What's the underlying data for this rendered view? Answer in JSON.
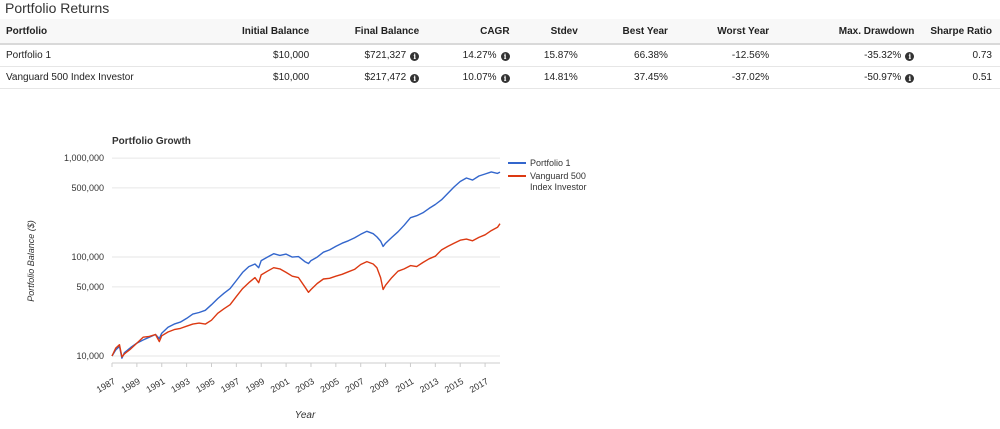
{
  "page_title": "Portfolio Returns",
  "table": {
    "headers": [
      "Portfolio",
      "Initial Balance",
      "Final Balance",
      "CAGR",
      "Stdev",
      "Best Year",
      "Worst Year",
      "Max. Drawdown",
      "Sharpe Ratio"
    ],
    "rows": [
      {
        "portfolio": "Portfolio 1",
        "initial_balance": "$10,000",
        "final_balance": "$721,327",
        "cagr": "14.27%",
        "stdev": "15.87%",
        "best_year": "66.38%",
        "worst_year": "-12.56%",
        "max_drawdown": "-35.32%",
        "sharpe_ratio": "0.73"
      },
      {
        "portfolio": "Vanguard 500 Index Investor",
        "initial_balance": "$10,000",
        "final_balance": "$217,472",
        "cagr": "10.07%",
        "stdev": "14.81%",
        "best_year": "37.45%",
        "worst_year": "-37.02%",
        "max_drawdown": "-50.97%",
        "sharpe_ratio": "0.51"
      }
    ],
    "info_icon": "info-circle-icon"
  },
  "colors": {
    "portfolio_1": "#3366cc",
    "vanguard": "#dc3912"
  },
  "chart_data": {
    "type": "line",
    "title": "Portfolio Growth",
    "xlabel": "Year",
    "ylabel": "Portfolio Balance ($)",
    "y_scale": "log",
    "ylim": [
      8500,
      1100000
    ],
    "xlim": [
      1987,
      2018.2
    ],
    "y_ticks": [
      10000,
      50000,
      100000,
      500000,
      1000000
    ],
    "y_tick_labels": [
      "10,000",
      "50,000",
      "100,000",
      "500,000",
      "1,000,000"
    ],
    "x_ticks": [
      1987,
      1989,
      1991,
      1993,
      1995,
      1997,
      1999,
      2001,
      2003,
      2005,
      2007,
      2009,
      2011,
      2013,
      2015,
      2017
    ],
    "x_tick_labels": [
      "1987",
      "1989",
      "1991",
      "1993",
      "1995",
      "1997",
      "1999",
      "2001",
      "2003",
      "2005",
      "2007",
      "2009",
      "2011",
      "2013",
      "2015",
      "2017"
    ],
    "legend_position": "right",
    "series": [
      {
        "name": "Portfolio 1",
        "color": "#3366cc",
        "points": [
          [
            1987.0,
            10000
          ],
          [
            1987.3,
            11500
          ],
          [
            1987.6,
            12500
          ],
          [
            1987.8,
            9500
          ],
          [
            1988.0,
            10800
          ],
          [
            1988.5,
            12200
          ],
          [
            1989.0,
            13500
          ],
          [
            1989.5,
            14500
          ],
          [
            1990.0,
            15500
          ],
          [
            1990.5,
            16500
          ],
          [
            1990.8,
            15000
          ],
          [
            1991.0,
            17000
          ],
          [
            1991.5,
            19500
          ],
          [
            1992.0,
            21000
          ],
          [
            1992.5,
            22000
          ],
          [
            1993.0,
            24000
          ],
          [
            1993.5,
            26500
          ],
          [
            1994.0,
            27500
          ],
          [
            1994.5,
            29000
          ],
          [
            1995.0,
            33000
          ],
          [
            1995.5,
            38000
          ],
          [
            1996.0,
            43000
          ],
          [
            1996.5,
            48000
          ],
          [
            1997.0,
            58000
          ],
          [
            1997.5,
            70000
          ],
          [
            1998.0,
            80000
          ],
          [
            1998.5,
            85000
          ],
          [
            1998.8,
            78000
          ],
          [
            1999.0,
            92000
          ],
          [
            1999.5,
            100000
          ],
          [
            2000.0,
            108000
          ],
          [
            2000.5,
            104000
          ],
          [
            2001.0,
            107000
          ],
          [
            2001.5,
            100000
          ],
          [
            2002.0,
            101000
          ],
          [
            2002.5,
            90000
          ],
          [
            2002.8,
            86000
          ],
          [
            2003.0,
            92000
          ],
          [
            2003.5,
            100000
          ],
          [
            2004.0,
            112000
          ],
          [
            2004.5,
            118000
          ],
          [
            2005.0,
            128000
          ],
          [
            2005.5,
            138000
          ],
          [
            2006.0,
            146000
          ],
          [
            2006.5,
            156000
          ],
          [
            2007.0,
            170000
          ],
          [
            2007.5,
            182000
          ],
          [
            2008.0,
            172000
          ],
          [
            2008.3,
            160000
          ],
          [
            2008.6,
            145000
          ],
          [
            2008.8,
            128000
          ],
          [
            2009.0,
            138000
          ],
          [
            2009.5,
            158000
          ],
          [
            2010.0,
            180000
          ],
          [
            2010.5,
            210000
          ],
          [
            2011.0,
            250000
          ],
          [
            2011.5,
            262000
          ],
          [
            2012.0,
            280000
          ],
          [
            2012.5,
            310000
          ],
          [
            2013.0,
            340000
          ],
          [
            2013.5,
            380000
          ],
          [
            2014.0,
            440000
          ],
          [
            2014.5,
            510000
          ],
          [
            2015.0,
            580000
          ],
          [
            2015.5,
            630000
          ],
          [
            2016.0,
            600000
          ],
          [
            2016.5,
            660000
          ],
          [
            2017.0,
            690000
          ],
          [
            2017.5,
            725000
          ],
          [
            2018.0,
            700000
          ],
          [
            2018.2,
            721327
          ]
        ]
      },
      {
        "name": "Vanguard 500 Index Investor",
        "color": "#dc3912",
        "points": [
          [
            1987.0,
            10000
          ],
          [
            1987.3,
            12000
          ],
          [
            1987.6,
            13000
          ],
          [
            1987.8,
            9800
          ],
          [
            1988.0,
            10500
          ],
          [
            1988.5,
            11800
          ],
          [
            1989.0,
            13500
          ],
          [
            1989.5,
            15500
          ],
          [
            1990.0,
            15800
          ],
          [
            1990.5,
            16500
          ],
          [
            1990.8,
            14000
          ],
          [
            1991.0,
            16000
          ],
          [
            1991.5,
            17500
          ],
          [
            1992.0,
            18500
          ],
          [
            1992.5,
            19000
          ],
          [
            1993.0,
            20000
          ],
          [
            1993.5,
            21000
          ],
          [
            1994.0,
            21500
          ],
          [
            1994.5,
            21000
          ],
          [
            1995.0,
            23000
          ],
          [
            1995.5,
            27000
          ],
          [
            1996.0,
            30000
          ],
          [
            1996.5,
            33000
          ],
          [
            1997.0,
            40000
          ],
          [
            1997.5,
            48000
          ],
          [
            1998.0,
            55000
          ],
          [
            1998.5,
            62000
          ],
          [
            1998.8,
            55000
          ],
          [
            1999.0,
            66000
          ],
          [
            1999.5,
            72000
          ],
          [
            2000.0,
            78000
          ],
          [
            2000.5,
            76000
          ],
          [
            2001.0,
            70000
          ],
          [
            2001.5,
            64000
          ],
          [
            2002.0,
            62000
          ],
          [
            2002.5,
            50000
          ],
          [
            2002.8,
            44000
          ],
          [
            2003.0,
            47000
          ],
          [
            2003.5,
            54000
          ],
          [
            2004.0,
            60000
          ],
          [
            2004.5,
            61000
          ],
          [
            2005.0,
            64000
          ],
          [
            2005.5,
            67000
          ],
          [
            2006.0,
            71000
          ],
          [
            2006.5,
            75000
          ],
          [
            2007.0,
            84000
          ],
          [
            2007.5,
            90000
          ],
          [
            2008.0,
            85000
          ],
          [
            2008.3,
            78000
          ],
          [
            2008.6,
            62000
          ],
          [
            2008.8,
            47000
          ],
          [
            2009.0,
            52000
          ],
          [
            2009.5,
            62000
          ],
          [
            2010.0,
            72000
          ],
          [
            2010.5,
            76000
          ],
          [
            2011.0,
            82000
          ],
          [
            2011.5,
            80000
          ],
          [
            2012.0,
            88000
          ],
          [
            2012.5,
            96000
          ],
          [
            2013.0,
            102000
          ],
          [
            2013.5,
            118000
          ],
          [
            2014.0,
            128000
          ],
          [
            2014.5,
            138000
          ],
          [
            2015.0,
            148000
          ],
          [
            2015.5,
            152000
          ],
          [
            2016.0,
            146000
          ],
          [
            2016.5,
            158000
          ],
          [
            2017.0,
            168000
          ],
          [
            2017.5,
            185000
          ],
          [
            2018.0,
            200000
          ],
          [
            2018.2,
            217472
          ]
        ]
      }
    ]
  }
}
